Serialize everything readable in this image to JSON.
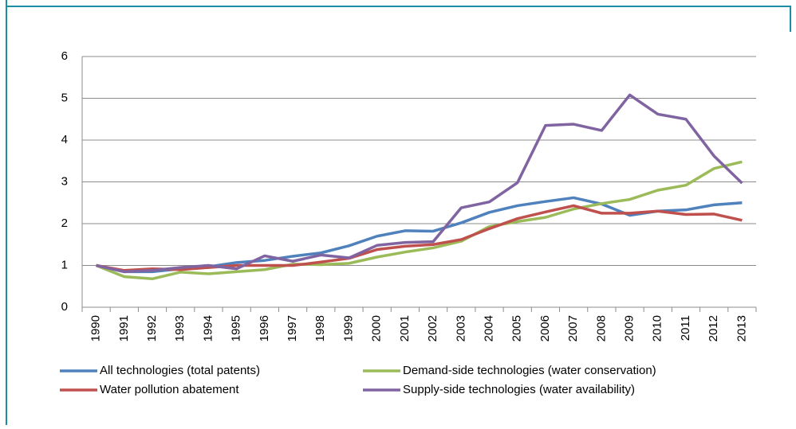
{
  "chart_data": {
    "type": "line",
    "categories": [
      "1990",
      "1991",
      "1992",
      "1993",
      "1994",
      "1995",
      "1996",
      "1997",
      "1998",
      "1999",
      "2000",
      "2001",
      "2002",
      "2003",
      "2004",
      "2005",
      "2006",
      "2007",
      "2008",
      "2009",
      "2010",
      "2011",
      "2012",
      "2013"
    ],
    "series": [
      {
        "name": "All technologies (total patents)",
        "color": "#4f81bd",
        "values": [
          1.0,
          0.85,
          0.85,
          0.92,
          0.97,
          1.07,
          1.12,
          1.22,
          1.3,
          1.47,
          1.7,
          1.83,
          1.82,
          2.02,
          2.27,
          2.43,
          2.53,
          2.62,
          2.47,
          2.2,
          2.3,
          2.33,
          2.45,
          2.5
        ]
      },
      {
        "name": "Demand-side technologies (water conservation)",
        "color": "#9bbb59",
        "values": [
          1.0,
          0.73,
          0.68,
          0.84,
          0.8,
          0.85,
          0.9,
          1.03,
          1.02,
          1.05,
          1.2,
          1.32,
          1.42,
          1.58,
          1.93,
          2.05,
          2.15,
          2.35,
          2.48,
          2.58,
          2.8,
          2.92,
          3.32,
          3.48
        ]
      },
      {
        "name": "Water pollution abatement",
        "color": "#c0504d",
        "values": [
          1.0,
          0.88,
          0.92,
          0.9,
          0.95,
          1.0,
          1.0,
          1.0,
          1.08,
          1.17,
          1.38,
          1.46,
          1.5,
          1.62,
          1.88,
          2.12,
          2.28,
          2.43,
          2.25,
          2.25,
          2.3,
          2.22,
          2.23,
          2.08
        ]
      },
      {
        "name": "Supply-side technologies (water availability)",
        "color": "#8064a2",
        "values": [
          1.0,
          0.85,
          0.88,
          0.95,
          1.0,
          0.92,
          1.23,
          1.1,
          1.25,
          1.18,
          1.48,
          1.55,
          1.57,
          2.38,
          2.52,
          2.98,
          4.35,
          4.38,
          4.23,
          5.08,
          4.62,
          4.5,
          3.62,
          2.97
        ]
      }
    ],
    "ylim": [
      0,
      6
    ],
    "yticks": [
      0,
      1,
      2,
      3,
      4,
      5,
      6
    ],
    "grid": true,
    "legend": "bottom"
  }
}
